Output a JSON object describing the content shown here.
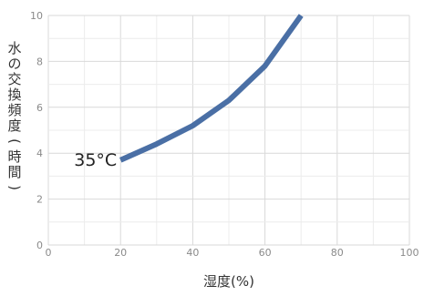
{
  "chart_data": {
    "type": "line",
    "title": "",
    "xlabel": "湿度(%)",
    "ylabel": "水の交換頻度(時間)",
    "xlim": [
      0,
      100
    ],
    "ylim": [
      0,
      10
    ],
    "x_ticks": [
      "0",
      "20",
      "40",
      "60",
      "80",
      "100"
    ],
    "y_ticks": [
      "0",
      "2",
      "4",
      "6",
      "8",
      "10"
    ],
    "grid": true,
    "series": [
      {
        "name": "35°C",
        "color": "#4a6fa5",
        "x": [
          20,
          30,
          40,
          50,
          60,
          70
        ],
        "y": [
          3.7,
          4.4,
          5.2,
          6.3,
          7.8,
          10.0
        ]
      }
    ]
  }
}
